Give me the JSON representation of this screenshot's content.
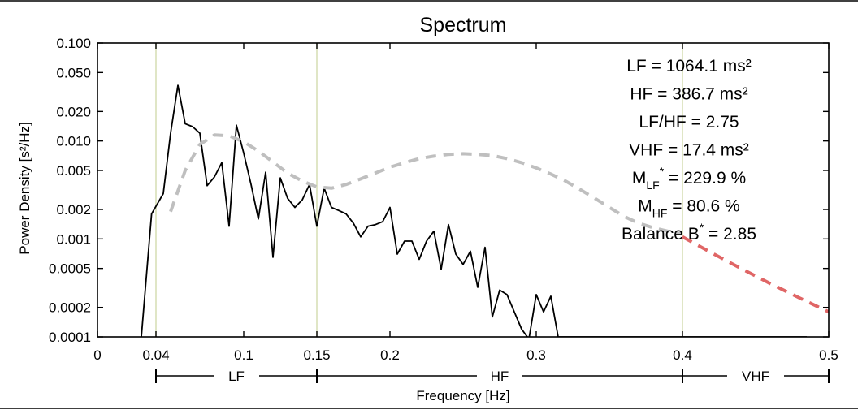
{
  "chart_data": {
    "type": "line",
    "title": "Spectrum",
    "xlabel": "Frequency [Hz]",
    "ylabel": "Power Density [s²/Hz]",
    "xlim": [
      0,
      0.5
    ],
    "ylim": [
      0.0001,
      0.1
    ],
    "yscale": "log",
    "grid": false,
    "x_ticks": [
      {
        "v": 0,
        "label": "0"
      },
      {
        "v": 0.04,
        "label": "0.04"
      },
      {
        "v": 0.1,
        "label": "0.1"
      },
      {
        "v": 0.15,
        "label": "0.15"
      },
      {
        "v": 0.2,
        "label": "0.2"
      },
      {
        "v": 0.3,
        "label": "0.3"
      },
      {
        "v": 0.4,
        "label": "0.4"
      },
      {
        "v": 0.5,
        "label": "0.5"
      }
    ],
    "y_ticks": [
      {
        "v": 0.1,
        "label": "0.100"
      },
      {
        "v": 0.05,
        "label": "0.050"
      },
      {
        "v": 0.02,
        "label": "0.020"
      },
      {
        "v": 0.01,
        "label": "0.010"
      },
      {
        "v": 0.005,
        "label": "0.005"
      },
      {
        "v": 0.002,
        "label": "0.002"
      },
      {
        "v": 0.001,
        "label": "0.001"
      },
      {
        "v": 0.0005,
        "label": "0.0005"
      },
      {
        "v": 0.0002,
        "label": "0.0002"
      },
      {
        "v": 0.0001,
        "label": "0.0001"
      }
    ],
    "band_boundaries": [
      0.04,
      0.15,
      0.4
    ],
    "bands": [
      {
        "label": "LF",
        "from": 0.04,
        "to": 0.15
      },
      {
        "label": "HF",
        "from": 0.15,
        "to": 0.4
      },
      {
        "label": "VHF",
        "from": 0.4,
        "to": 0.5
      }
    ],
    "series": [
      {
        "color": "#000000",
        "style": "solid",
        "x": [
          0.03,
          0.037,
          0.045,
          0.05,
          0.055,
          0.06,
          0.065,
          0.07,
          0.075,
          0.08,
          0.085,
          0.09,
          0.095,
          0.1,
          0.105,
          0.11,
          0.115,
          0.12,
          0.125,
          0.13,
          0.135,
          0.14,
          0.145,
          0.15,
          0.155,
          0.16,
          0.165,
          0.17,
          0.175,
          0.18,
          0.185,
          0.19,
          0.195,
          0.2,
          0.205,
          0.21,
          0.215,
          0.22,
          0.225,
          0.23,
          0.235,
          0.24,
          0.245,
          0.25,
          0.255,
          0.26,
          0.265,
          0.27,
          0.275,
          0.28,
          0.285,
          0.29,
          0.295,
          0.3,
          0.305,
          0.31,
          0.315,
          0.32,
          0.325,
          0.33,
          0.335,
          0.34,
          0.345,
          0.35,
          0.355,
          0.36,
          0.365,
          0.37,
          0.375,
          0.38,
          0.385,
          0.39,
          0.395,
          0.4,
          0.405,
          0.41,
          0.415,
          0.42,
          0.425,
          0.43,
          0.435,
          0.44,
          0.445,
          0.45,
          0.455,
          0.46,
          0.465,
          0.47,
          0.475,
          0.48,
          0.485
        ],
        "y": [
          0.0001,
          0.0018,
          0.0029,
          0.012,
          0.037,
          0.015,
          0.014,
          0.012,
          0.0035,
          0.0043,
          0.006,
          0.00135,
          0.0145,
          0.0075,
          0.0036,
          0.0016,
          0.0048,
          0.00065,
          0.0042,
          0.0026,
          0.0021,
          0.0025,
          0.0036,
          0.00135,
          0.0033,
          0.0021,
          0.00195,
          0.0018,
          0.00145,
          0.00105,
          0.00135,
          0.0014,
          0.0015,
          0.0021,
          0.0007,
          0.00095,
          0.00095,
          0.00062,
          0.00095,
          0.0012,
          0.00049,
          0.0014,
          0.0007,
          0.00055,
          0.00075,
          0.00032,
          0.00082,
          0.00016,
          0.0003,
          0.00027,
          0.00018,
          0.00012,
          9.5e-05,
          0.00027,
          0.00018,
          0.00026,
          0.0001,
          0.0001,
          0.0001,
          0.0001,
          0.0001,
          0.0001,
          0.0001,
          0.0001,
          0.0001,
          0.0001,
          0.0001,
          0.0001,
          0.0001,
          0.0001,
          0.0001,
          0.0001,
          0.0001,
          0.0001,
          0.0001,
          0.0001,
          0.0001,
          0.0001,
          0.0001,
          0.0001,
          0.0001,
          0.0001,
          0.0001,
          0.0001,
          0.0001,
          0.0001,
          0.0001,
          0.0001,
          0.0001,
          0.0001,
          0.0001
        ]
      },
      {
        "color": "#bfbfbf",
        "style": "dashed",
        "x": [
          0.05,
          0.06,
          0.07,
          0.08,
          0.09,
          0.1,
          0.11,
          0.12,
          0.13,
          0.14,
          0.15,
          0.16,
          0.17,
          0.18,
          0.19,
          0.2,
          0.21,
          0.22,
          0.23,
          0.24,
          0.25,
          0.26,
          0.27,
          0.28,
          0.29,
          0.3,
          0.31,
          0.32,
          0.33,
          0.34,
          0.35,
          0.36,
          0.37,
          0.38,
          0.39,
          0.4
        ],
        "y": [
          0.0019,
          0.005,
          0.0092,
          0.0115,
          0.0113,
          0.0098,
          0.0079,
          0.0061,
          0.0047,
          0.0039,
          0.0034,
          0.0033,
          0.0036,
          0.0041,
          0.0047,
          0.0054,
          0.006,
          0.0066,
          0.007,
          0.0073,
          0.0074,
          0.0073,
          0.0071,
          0.0066,
          0.006,
          0.0053,
          0.0046,
          0.0039,
          0.0032,
          0.0026,
          0.0021,
          0.0017,
          0.00145,
          0.0013,
          0.0012,
          0.00112
        ]
      },
      {
        "color": "#e06666",
        "style": "dashed",
        "x": [
          0.4,
          0.42,
          0.44,
          0.46,
          0.48,
          0.5
        ],
        "y": [
          0.00105,
          0.00072,
          0.0005,
          0.00035,
          0.00025,
          0.00018
        ]
      }
    ],
    "annotations": [
      {
        "text": "LF = 1064.1 ms²"
      },
      {
        "text": "HF = 386.7 ms²"
      },
      {
        "text": "LF/HF = 2.75"
      },
      {
        "text": "VHF = 17.4 ms²"
      },
      {
        "main": "M",
        "sub": "LF",
        "sup": "*",
        "rest": " = 229.9 %"
      },
      {
        "main": "M",
        "sub": "HF",
        "sup": "",
        "rest": " = 80.6 %"
      },
      {
        "main": "Balance B",
        "sub": "",
        "sup": "*",
        "rest": " = 2.85"
      }
    ]
  }
}
